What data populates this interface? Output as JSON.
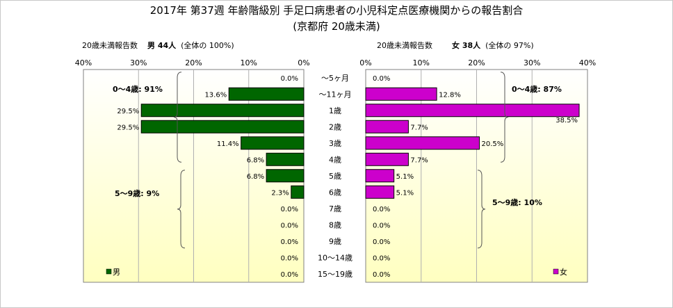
{
  "title": "2017年 第37週 年齢階級別 手足口病患者の小児科定点医療機関からの報告割合",
  "subtitle": "(京都府 20歳未満)",
  "chart_data": {
    "type": "bar",
    "orientation": "horizontal-population-pyramid",
    "categories": [
      "～5ヶ月",
      "～11ヶ月",
      "1歳",
      "2歳",
      "3歳",
      "4歳",
      "5歳",
      "6歳",
      "7歳",
      "8歳",
      "9歳",
      "10～14歳",
      "15～19歳"
    ],
    "xlim": [
      0,
      40
    ],
    "ticks": [
      "40%",
      "30%",
      "20%",
      "10%",
      "0%"
    ],
    "ticks_right": [
      "0%",
      "10%",
      "20%",
      "30%",
      "40%"
    ],
    "grid": true,
    "series": [
      {
        "name": "男",
        "header_label": "20歳未満報告数",
        "header_count": "男 44人",
        "header_share": "(全体の 100%)",
        "color": "#006600",
        "values": [
          0.0,
          13.6,
          29.5,
          29.5,
          11.4,
          6.8,
          6.8,
          2.3,
          0.0,
          0.0,
          0.0,
          0.0,
          0.0
        ],
        "labels": [
          "0.0%",
          "13.6%",
          "29.5%",
          "29.5%",
          "11.4%",
          "6.8%",
          "6.8%",
          "2.3%",
          "0.0%",
          "0.0%",
          "0.0%",
          "0.0%",
          "0.0%"
        ],
        "group_annotations": [
          "0～4歳: 91%",
          "5～9歳: 9%"
        ]
      },
      {
        "name": "女",
        "header_label": "20歳未満報告数",
        "header_count": "女 38人",
        "header_share": "(全体の 97%)",
        "color": "#cc00cc",
        "values": [
          0.0,
          12.8,
          38.5,
          7.7,
          20.5,
          7.7,
          5.1,
          5.1,
          0.0,
          0.0,
          0.0,
          0.0,
          0.0
        ],
        "labels": [
          "0.0%",
          "12.8%",
          "38.5%",
          "7.7%",
          "20.5%",
          "7.7%",
          "5.1%",
          "5.1%",
          "0.0%",
          "0.0%",
          "0.0%",
          "0.0%",
          "0.0%"
        ],
        "group_annotations": [
          "0～4歳: 87%",
          "5～9歳: 10%"
        ]
      }
    ],
    "legend": [
      "男",
      "女"
    ],
    "legend_placement": "bottom-left of each panel"
  },
  "colors": {
    "male": "#006600",
    "female": "#cc00cc",
    "background_top": "#ffffff",
    "background_bottom": "#ffffc0"
  }
}
